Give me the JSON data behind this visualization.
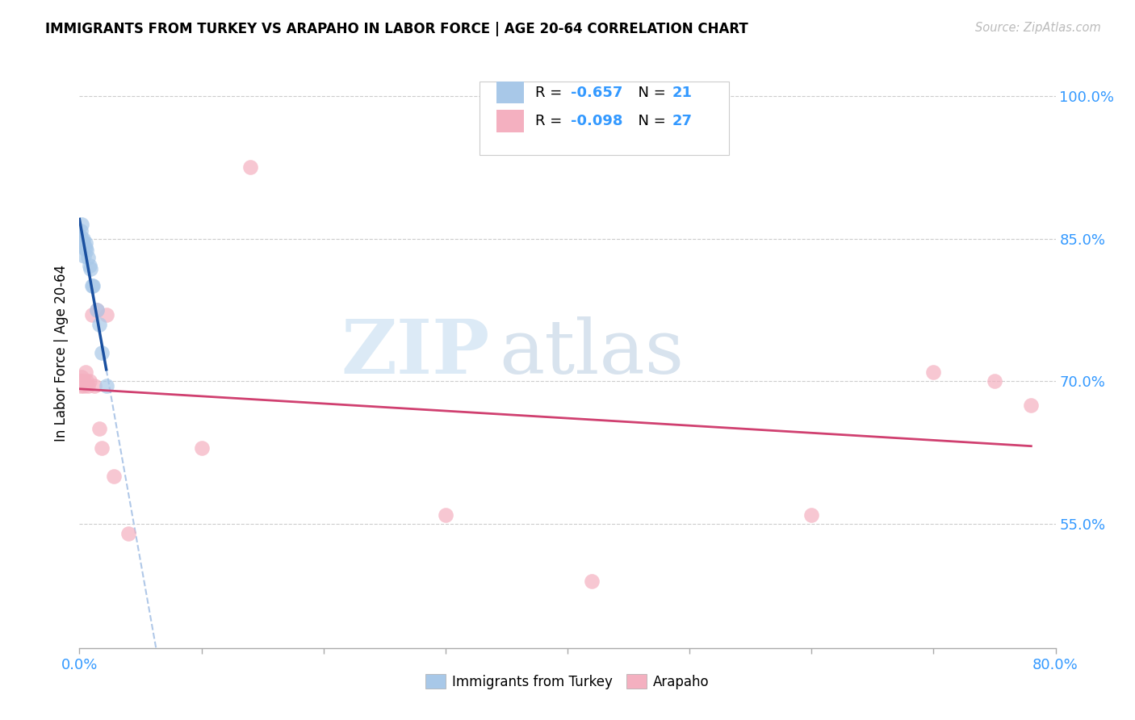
{
  "title": "IMMIGRANTS FROM TURKEY VS ARAPAHO IN LABOR FORCE | AGE 20-64 CORRELATION CHART",
  "source": "Source: ZipAtlas.com",
  "ylabel": "In Labor Force | Age 20-64",
  "xlim": [
    0.0,
    0.8
  ],
  "ylim": [
    0.42,
    1.04
  ],
  "y_ticks_right": [
    0.55,
    0.7,
    0.85,
    1.0
  ],
  "y_tick_labels_right": [
    "55.0%",
    "70.0%",
    "85.0%",
    "100.0%"
  ],
  "x_ticks": [
    0.0,
    0.1,
    0.2,
    0.3,
    0.4,
    0.5,
    0.6,
    0.7,
    0.8
  ],
  "legend_label1": "Immigrants from Turkey",
  "legend_label2": "Arapaho",
  "R1": "-0.657",
  "N1": "21",
  "R2": "-0.098",
  "N2": "27",
  "color_blue": "#a8c8e8",
  "color_pink": "#f4b0c0",
  "trendline_blue": "#1a50a0",
  "trendline_pink": "#d04070",
  "trendline_blue_dashed": "#b0c8e8",
  "watermark_zip": "ZIP",
  "watermark_atlas": "atlas",
  "turkey_x": [
    0.0,
    0.001,
    0.001,
    0.002,
    0.002,
    0.003,
    0.003,
    0.004,
    0.004,
    0.005,
    0.005,
    0.006,
    0.007,
    0.008,
    0.009,
    0.01,
    0.011,
    0.014,
    0.016,
    0.018,
    0.022
  ],
  "turkey_y": [
    0.85,
    0.858,
    0.852,
    0.865,
    0.848,
    0.85,
    0.845,
    0.832,
    0.84,
    0.845,
    0.84,
    0.838,
    0.83,
    0.822,
    0.818,
    0.8,
    0.8,
    0.775,
    0.76,
    0.73,
    0.695
  ],
  "arapaho_x": [
    0.0,
    0.001,
    0.001,
    0.002,
    0.002,
    0.003,
    0.004,
    0.005,
    0.006,
    0.007,
    0.008,
    0.01,
    0.012,
    0.014,
    0.016,
    0.018,
    0.022,
    0.028,
    0.04,
    0.1,
    0.14,
    0.3,
    0.42,
    0.6,
    0.7,
    0.75,
    0.78
  ],
  "arapaho_y": [
    0.7,
    0.7,
    0.695,
    0.7,
    0.705,
    0.7,
    0.695,
    0.71,
    0.7,
    0.695,
    0.7,
    0.77,
    0.695,
    0.775,
    0.65,
    0.63,
    0.77,
    0.6,
    0.54,
    0.63,
    0.925,
    0.56,
    0.49,
    0.56,
    0.71,
    0.7,
    0.675
  ]
}
